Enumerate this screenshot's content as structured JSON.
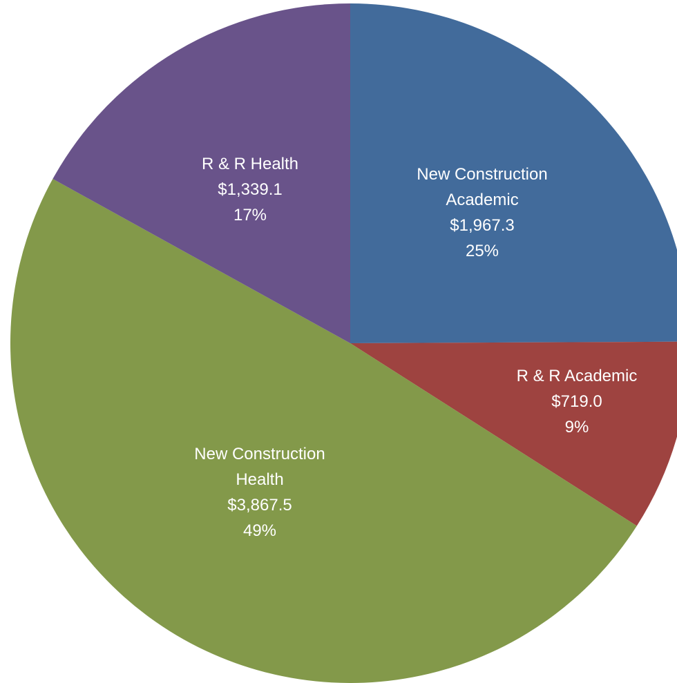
{
  "chart_data": {
    "type": "pie",
    "categories": [
      "New Construction\nAcademic",
      "R & R Academic",
      "New Construction\nHealth",
      "R & R Health"
    ],
    "values": [
      1967.3,
      719.0,
      3867.5,
      1339.1
    ],
    "value_labels": [
      "$1,967.3",
      "$719.0",
      "$3,867.5",
      "$1,339.1"
    ],
    "percent_labels": [
      "25%",
      "9%",
      "49%",
      "17%"
    ],
    "colors": [
      "#426b9b",
      "#9e4340",
      "#83994a",
      "#69538a"
    ]
  }
}
